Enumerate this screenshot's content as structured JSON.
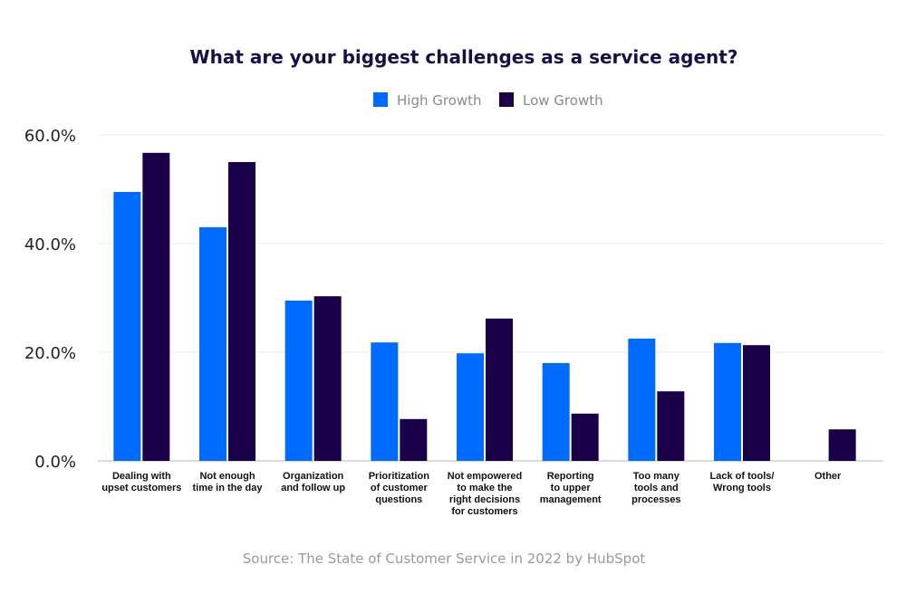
{
  "chart_data": {
    "type": "bar",
    "title": "What are your biggest challenges as a service agent?",
    "categories": [
      [
        "Dealing with",
        "upset customers"
      ],
      [
        "Not enough",
        "time in the day"
      ],
      [
        "Organization",
        "and follow up"
      ],
      [
        "Prioritization",
        "of customer",
        "questions"
      ],
      [
        "Not empowered",
        "to make the",
        "right decisions",
        "for customers"
      ],
      [
        "Reporting",
        "to upper",
        "management"
      ],
      [
        "Too many",
        "tools and",
        "processes"
      ],
      [
        "Lack of tools/",
        "Wrong tools"
      ],
      [
        "Other"
      ]
    ],
    "series": [
      {
        "name": "High Growth",
        "color": "#006cff",
        "values": [
          49.5,
          43.0,
          29.5,
          21.8,
          19.8,
          18.0,
          22.5,
          21.7,
          0
        ]
      },
      {
        "name": "Low Growth",
        "color": "#1a0048",
        "values": [
          56.7,
          55.0,
          30.3,
          7.7,
          26.2,
          8.7,
          12.8,
          21.3,
          5.8
        ]
      }
    ],
    "yticks": [
      "0.0%",
      "20.0%",
      "40.0%",
      "60.0%"
    ],
    "ytick_values": [
      0,
      20,
      40,
      60
    ],
    "ylim": [
      0,
      60
    ],
    "xlabel": "",
    "ylabel": "",
    "grid": true,
    "legend_position": "top-center",
    "source": "Source: The State of Customer Service in 2022 by HubSpot"
  }
}
